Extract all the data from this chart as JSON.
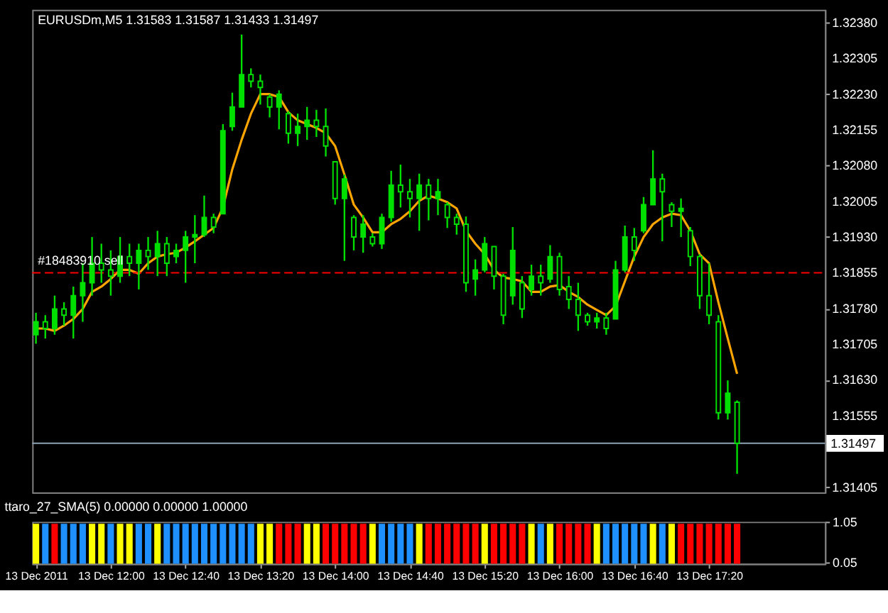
{
  "chart_data": [
    {
      "type": "candlestick",
      "title": "EURUSDm,M5  1.31583 1.31587 1.31433 1.31497",
      "color": "#00e000",
      "x": [
        "2011-12-13T11:20",
        "2011-12-13T11:25",
        "2011-12-13T11:30",
        "2011-12-13T11:35",
        "2011-12-13T11:40",
        "2011-12-13T11:45",
        "2011-12-13T11:50",
        "2011-12-13T11:55",
        "2011-12-13T12:00",
        "2011-12-13T12:05",
        "2011-12-13T12:10",
        "2011-12-13T12:15",
        "2011-12-13T12:20",
        "2011-12-13T12:25",
        "2011-12-13T12:30",
        "2011-12-13T12:35",
        "2011-12-13T12:40",
        "2011-12-13T12:45",
        "2011-12-13T12:50",
        "2011-12-13T12:55",
        "2011-12-13T13:00",
        "2011-12-13T13:05",
        "2011-12-13T13:10",
        "2011-12-13T13:15",
        "2011-12-13T13:20",
        "2011-12-13T13:25",
        "2011-12-13T13:30",
        "2011-12-13T13:35",
        "2011-12-13T13:40",
        "2011-12-13T13:45",
        "2011-12-13T13:50",
        "2011-12-13T13:55",
        "2011-12-13T14:00",
        "2011-12-13T14:05",
        "2011-12-13T14:10",
        "2011-12-13T14:15",
        "2011-12-13T14:20",
        "2011-12-13T14:25",
        "2011-12-13T14:30",
        "2011-12-13T14:35",
        "2011-12-13T14:40",
        "2011-12-13T14:45",
        "2011-12-13T14:50",
        "2011-12-13T14:55",
        "2011-12-13T15:00",
        "2011-12-13T15:05",
        "2011-12-13T15:10",
        "2011-12-13T15:15",
        "2011-12-13T15:20",
        "2011-12-13T15:25",
        "2011-12-13T15:30",
        "2011-12-13T15:35",
        "2011-12-13T15:40",
        "2011-12-13T15:45",
        "2011-12-13T15:50",
        "2011-12-13T15:55",
        "2011-12-13T16:00",
        "2011-12-13T16:05",
        "2011-12-13T16:10",
        "2011-12-13T16:15",
        "2011-12-13T16:20",
        "2011-12-13T16:25",
        "2011-12-13T16:30",
        "2011-12-13T16:35",
        "2011-12-13T16:40",
        "2011-12-13T16:45",
        "2011-12-13T16:50",
        "2011-12-13T16:55",
        "2011-12-13T17:00",
        "2011-12-13T17:05",
        "2011-12-13T17:10",
        "2011-12-13T17:15",
        "2011-12-13T17:20",
        "2011-12-13T17:25",
        "2011-12-13T17:30",
        "2011-12-13T17:35"
      ],
      "ohlc": [
        [
          1.31725,
          1.31771,
          1.31706,
          1.31752
        ],
        [
          1.31752,
          1.31766,
          1.31717,
          1.31738
        ],
        [
          1.31738,
          1.31807,
          1.31725,
          1.31779
        ],
        [
          1.31779,
          1.31793,
          1.31744,
          1.31766
        ],
        [
          1.31766,
          1.31826,
          1.31717,
          1.31807
        ],
        [
          1.31807,
          1.31875,
          1.31752,
          1.31834
        ],
        [
          1.31834,
          1.3193,
          1.31807,
          1.31875
        ],
        [
          1.31875,
          1.31916,
          1.31834,
          1.31861
        ],
        [
          1.31861,
          1.31902,
          1.31807,
          1.31848
        ],
        [
          1.31848,
          1.3193,
          1.31834,
          1.31889
        ],
        [
          1.31889,
          1.31916,
          1.31848,
          1.31875
        ],
        [
          1.31875,
          1.31916,
          1.3182,
          1.31902
        ],
        [
          1.31902,
          1.3193,
          1.31861,
          1.31889
        ],
        [
          1.31889,
          1.31943,
          1.31848,
          1.31916
        ],
        [
          1.31916,
          1.3193,
          1.31848,
          1.31875
        ],
        [
          1.31889,
          1.31916,
          1.31875,
          1.31902
        ],
        [
          1.31902,
          1.31943,
          1.31834,
          1.3193
        ],
        [
          1.3193,
          1.31976,
          1.31875,
          1.31935
        ],
        [
          1.31935,
          1.32017,
          1.3193,
          1.31971
        ],
        [
          1.31971,
          1.31979,
          1.31938,
          1.31951
        ],
        [
          1.31979,
          1.32167,
          1.31979,
          1.32153
        ],
        [
          1.32162,
          1.32233,
          1.32153,
          1.32203
        ],
        [
          1.32203,
          1.32355,
          1.32203,
          1.32271
        ],
        [
          1.32271,
          1.32284,
          1.32244,
          1.32257
        ],
        [
          1.32257,
          1.32271,
          1.32208,
          1.32244
        ],
        [
          1.32224,
          1.3223,
          1.32181,
          1.32203
        ],
        [
          1.32203,
          1.32238,
          1.32156,
          1.3223
        ],
        [
          1.32189,
          1.32194,
          1.32126,
          1.32148
        ],
        [
          1.32148,
          1.32189,
          1.32121,
          1.32162
        ],
        [
          1.32162,
          1.32203,
          1.32134,
          1.32175
        ],
        [
          1.32175,
          1.32197,
          1.3214,
          1.32162
        ],
        [
          1.32162,
          1.322,
          1.32099,
          1.32121
        ],
        [
          1.32088,
          1.32088,
          1.31998,
          1.32011
        ],
        [
          1.32011,
          1.32061,
          1.3188,
          1.32052
        ],
        [
          1.31971,
          1.31976,
          1.31902,
          1.3193
        ],
        [
          1.3193,
          1.31976,
          1.31897,
          1.31957
        ],
        [
          1.3193,
          1.31938,
          1.3191,
          1.31916
        ],
        [
          1.31916,
          1.31979,
          1.31905,
          1.31971
        ],
        [
          1.31971,
          1.32069,
          1.31962,
          1.32039
        ],
        [
          1.32039,
          1.32082,
          1.31992,
          1.32025
        ],
        [
          1.32025,
          1.32052,
          1.31971,
          1.32011
        ],
        [
          1.32011,
          1.32063,
          1.31943,
          1.32039
        ],
        [
          1.32039,
          1.32052,
          1.31965,
          1.32011
        ],
        [
          1.32011,
          1.32052,
          1.31976,
          1.32025
        ],
        [
          1.31998,
          1.32003,
          1.31949,
          1.31971
        ],
        [
          1.31971,
          1.31979,
          1.31935,
          1.31957
        ],
        [
          1.31957,
          1.31973,
          1.31815,
          1.31834
        ],
        [
          1.31842,
          1.31883,
          1.31807,
          1.31861
        ],
        [
          1.31861,
          1.3193,
          1.31856,
          1.31916
        ],
        [
          1.3191,
          1.3191,
          1.3182,
          1.31848
        ],
        [
          1.31848,
          1.31853,
          1.31747,
          1.31766
        ],
        [
          1.31807,
          1.31951,
          1.31788,
          1.31902
        ],
        [
          1.31834,
          1.31848,
          1.3176,
          1.31779
        ],
        [
          1.3182,
          1.31872,
          1.31807,
          1.31848
        ],
        [
          1.31848,
          1.31872,
          1.31807,
          1.31834
        ],
        [
          1.31842,
          1.31913,
          1.31834,
          1.31889
        ],
        [
          1.31889,
          1.31897,
          1.31807,
          1.3182
        ],
        [
          1.31826,
          1.31848,
          1.31779,
          1.31799
        ],
        [
          1.31799,
          1.31834,
          1.31733,
          1.31766
        ],
        [
          1.31766,
          1.31771,
          1.31744,
          1.31752
        ],
        [
          1.31752,
          1.31771,
          1.31738,
          1.3176
        ],
        [
          1.3176,
          1.31771,
          1.31725,
          1.31738
        ],
        [
          1.31758,
          1.3188,
          1.31758,
          1.31861
        ],
        [
          1.31861,
          1.31954,
          1.31856,
          1.3193
        ],
        [
          1.3193,
          1.31949,
          1.3188,
          1.31902
        ],
        [
          1.31943,
          1.32014,
          1.31938,
          1.31998
        ],
        [
          1.31998,
          1.32112,
          1.31998,
          1.32052
        ],
        [
          1.32052,
          1.32063,
          1.31921,
          1.32025
        ],
        [
          1.31998,
          1.32003,
          1.31951,
          1.31984
        ],
        [
          1.31984,
          1.32011,
          1.3193,
          1.3199
        ],
        [
          1.31943,
          1.31951,
          1.31869,
          1.31889
        ],
        [
          1.31889,
          1.31894,
          1.31779,
          1.31807
        ],
        [
          1.31807,
          1.31875,
          1.31747,
          1.31766
        ],
        [
          1.31752,
          1.31766,
          1.31547,
          1.31561
        ],
        [
          1.31561,
          1.31629,
          1.31547,
          1.31602
        ],
        [
          1.31583,
          1.31587,
          1.31433,
          1.31497
        ]
      ],
      "series": [
        {
          "type": "line",
          "color": "#ffa500",
          "values": [
            1.31738,
            1.31738,
            1.31733,
            1.31744,
            1.31758,
            1.31779,
            1.31815,
            1.31826,
            1.31842,
            1.31861,
            1.31861,
            1.31853,
            1.31875,
            1.31889,
            1.31894,
            1.31897,
            1.31908,
            1.31921,
            1.31935,
            1.31949,
            1.31992,
            1.32072,
            1.32134,
            1.32189,
            1.3223,
            1.3223,
            1.32224,
            1.32192,
            1.32175,
            1.32167,
            1.32159,
            1.32148,
            1.32121,
            1.32061,
            1.31998,
            1.31971,
            1.3194,
            1.3194,
            1.31957,
            1.31968,
            1.31984,
            1.32006,
            1.32017,
            1.32011,
            1.32003,
            1.3199,
            1.31943,
            1.31916,
            1.31894,
            1.31861,
            1.31845,
            1.31842,
            1.31837,
            1.31815,
            1.31815,
            1.31826,
            1.31829,
            1.31815,
            1.31804,
            1.31788,
            1.31777,
            1.31766,
            1.31785,
            1.31837,
            1.31889,
            1.3193,
            1.31957,
            1.31971,
            1.31979,
            1.31976,
            1.31943,
            1.31894,
            1.31875,
            1.31793,
            1.31717,
            1.31643
          ]
        }
      ],
      "xlim": [
        "2011-12-13T11:18",
        "2011-12-13T18:22"
      ],
      "ylim": [
        1.31394,
        1.32407
      ],
      "yticks": [
        {
          "value": 1.3238,
          "label": "1.32380"
        },
        1.32305,
        {
          "value": 1.3223,
          "label": "1.32230"
        },
        1.32155,
        {
          "value": 1.3208,
          "label": "1.32080"
        },
        1.32005,
        {
          "value": 1.3193,
          "label": "1.31930"
        },
        1.31855,
        {
          "value": 1.3178,
          "label": "1.31780"
        },
        1.31705,
        {
          "value": 1.3163,
          "label": "1.31630"
        },
        1.31555,
        1.31405
      ],
      "ref_lines": [
        {
          "axis": "y",
          "value": 1.31855,
          "label": "#18483910 sell",
          "color": "#ff0000",
          "line_style": "dashed"
        },
        {
          "axis": "y",
          "value": 1.31497,
          "label": "1.31497",
          "color": "#8fa3b8",
          "line_style": "solid"
        }
      ],
      "tick_labels": "y",
      "grid": false
    },
    {
      "type": "bar",
      "title": "ttaro_27_SMA(5) 0.00000 0.00000 1.00000",
      "x": [
        "2011-12-13T11:20",
        "2011-12-13T11:25",
        "2011-12-13T11:30",
        "2011-12-13T11:35",
        "2011-12-13T11:40",
        "2011-12-13T11:45",
        "2011-12-13T11:50",
        "2011-12-13T11:55",
        "2011-12-13T12:00",
        "2011-12-13T12:05",
        "2011-12-13T12:10",
        "2011-12-13T12:15",
        "2011-12-13T12:20",
        "2011-12-13T12:25",
        "2011-12-13T12:30",
        "2011-12-13T12:35",
        "2011-12-13T12:40",
        "2011-12-13T12:45",
        "2011-12-13T12:50",
        "2011-12-13T12:55",
        "2011-12-13T13:00",
        "2011-12-13T13:05",
        "2011-12-13T13:10",
        "2011-12-13T13:15",
        "2011-12-13T13:20",
        "2011-12-13T13:25",
        "2011-12-13T13:30",
        "2011-12-13T13:35",
        "2011-12-13T13:40",
        "2011-12-13T13:45",
        "2011-12-13T13:50",
        "2011-12-13T13:55",
        "2011-12-13T14:00",
        "2011-12-13T14:05",
        "2011-12-13T14:10",
        "2011-12-13T14:15",
        "2011-12-13T14:20",
        "2011-12-13T14:25",
        "2011-12-13T14:30",
        "2011-12-13T14:35",
        "2011-12-13T14:40",
        "2011-12-13T14:45",
        "2011-12-13T14:50",
        "2011-12-13T14:55",
        "2011-12-13T15:00",
        "2011-12-13T15:05",
        "2011-12-13T15:10",
        "2011-12-13T15:15",
        "2011-12-13T15:20",
        "2011-12-13T15:25",
        "2011-12-13T15:30",
        "2011-12-13T15:35",
        "2011-12-13T15:40",
        "2011-12-13T15:45",
        "2011-12-13T15:50",
        "2011-12-13T15:55",
        "2011-12-13T16:00",
        "2011-12-13T16:05",
        "2011-12-13T16:10",
        "2011-12-13T16:15",
        "2011-12-13T16:20",
        "2011-12-13T16:25",
        "2011-12-13T16:30",
        "2011-12-13T16:35",
        "2011-12-13T16:40",
        "2011-12-13T16:45",
        "2011-12-13T16:50",
        "2011-12-13T16:55",
        "2011-12-13T17:00",
        "2011-12-13T17:05",
        "2011-12-13T17:10",
        "2011-12-13T17:15",
        "2011-12-13T17:20",
        "2011-12-13T17:25",
        "2011-12-13T17:30",
        "2011-12-13T17:35"
      ],
      "values": [
        1,
        1,
        1,
        1,
        1,
        1,
        1,
        1,
        1,
        1,
        1,
        1,
        1,
        1,
        1,
        1,
        1,
        1,
        1,
        1,
        1,
        1,
        1,
        1,
        1,
        1,
        1,
        1,
        1,
        1,
        1,
        1,
        1,
        1,
        1,
        1,
        1,
        1,
        1,
        1,
        1,
        1,
        1,
        1,
        1,
        1,
        1,
        1,
        1,
        1,
        1,
        1,
        1,
        1,
        1,
        1,
        1,
        1,
        1,
        1,
        1,
        1,
        1,
        1,
        1,
        1,
        1,
        1,
        1,
        1,
        1,
        1,
        1,
        1,
        1,
        1
      ],
      "colors": [
        "#ffff00",
        "#1e90ff",
        "#ff0000",
        "#1e90ff",
        "#1e90ff",
        "#1e90ff",
        "#ffff00",
        "#ffff00",
        "#1e90ff",
        "#ffff00",
        "#ffff00",
        "#1e90ff",
        "#1e90ff",
        "#ffff00",
        "#1e90ff",
        "#1e90ff",
        "#1e90ff",
        "#1e90ff",
        "#1e90ff",
        "#1e90ff",
        "#1e90ff",
        "#1e90ff",
        "#1e90ff",
        "#1e90ff",
        "#ffff00",
        "#ffff00",
        "#ff0000",
        "#ff0000",
        "#ff0000",
        "#ffff00",
        "#ffff00",
        "#ff0000",
        "#ff0000",
        "#ff0000",
        "#ff0000",
        "#ff0000",
        "#ffff00",
        "#1e90ff",
        "#1e90ff",
        "#1e90ff",
        "#1e90ff",
        "#ffff00",
        "#ff0000",
        "#ff0000",
        "#ff0000",
        "#ff0000",
        "#ff0000",
        "#ff0000",
        "#ffff00",
        "#ff0000",
        "#ff0000",
        "#ff0000",
        "#ff0000",
        "#ffff00",
        "#1e90ff",
        "#ffff00",
        "#ff0000",
        "#ff0000",
        "#ff0000",
        "#ff0000",
        "#ffff00",
        "#1e90ff",
        "#1e90ff",
        "#1e90ff",
        "#1e90ff",
        "#1e90ff",
        "#ffff00",
        "#1e90ff",
        "#ffff00",
        "#ff0000",
        "#ff0000",
        "#ff0000",
        "#ff0000",
        "#ff0000",
        "#ff0000",
        "#ff0000"
      ],
      "xlim": [
        "2011-12-13T11:18",
        "2011-12-13T18:22"
      ],
      "xticks": [
        {
          "value": "2011-12-13T11:20",
          "label": "13 Dec 2011"
        },
        {
          "value": "2011-12-13T12:00",
          "label": "13 Dec 12:00"
        },
        {
          "value": "2011-12-13T12:40",
          "label": "13 Dec 12:40"
        },
        {
          "value": "2011-12-13T13:20",
          "label": "13 Dec 13:20"
        },
        {
          "value": "2011-12-13T14:00",
          "label": "13 Dec 14:00"
        },
        {
          "value": "2011-12-13T14:40",
          "label": "13 Dec 14:40"
        },
        {
          "value": "2011-12-13T15:20",
          "label": "13 Dec 15:20"
        },
        {
          "value": "2011-12-13T16:00",
          "label": "13 Dec 16:00"
        },
        {
          "value": "2011-12-13T16:40",
          "label": "13 Dec 16:40"
        },
        {
          "value": "2011-12-13T17:20",
          "label": "13 Dec 17:20"
        }
      ],
      "ylim": [
        0,
        1.05
      ],
      "yticks": [
        0.05,
        1.05
      ],
      "grid": false
    }
  ]
}
